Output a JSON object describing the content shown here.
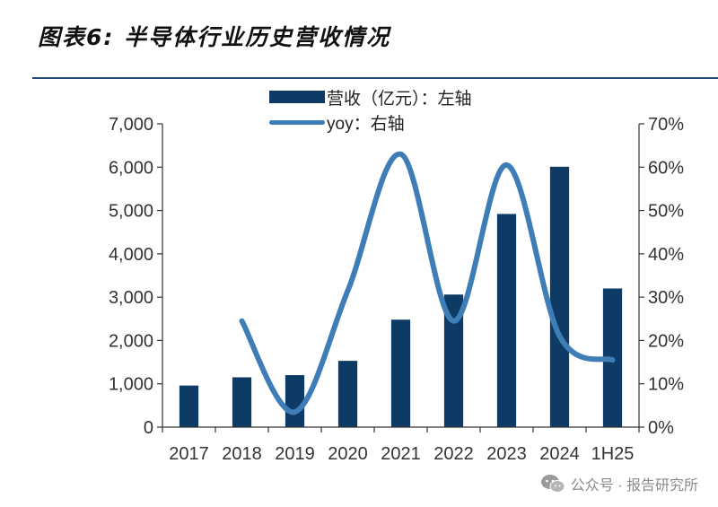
{
  "figure": {
    "title": "图表6: 半导体行业历史营收情况",
    "watermark": "公众号 · 报告研究所",
    "watermark_icon": "wechat-icon"
  },
  "colors": {
    "bar": "#0d3b66",
    "line": "#3f7db6",
    "rule": "#24496f",
    "axis": "#333333",
    "text": "#333333"
  },
  "chart_data": {
    "type": "bar",
    "categories": [
      "2017",
      "2018",
      "2019",
      "2020",
      "2021",
      "2022",
      "2023",
      "2024",
      "1H25"
    ],
    "series": [
      {
        "name": "营收（亿元）：左轴",
        "type": "bar",
        "axis": "left",
        "values": [
          960,
          1150,
          1200,
          1530,
          2480,
          3060,
          4920,
          6010,
          3200
        ]
      },
      {
        "name": "yoy：右轴",
        "type": "line",
        "axis": "right",
        "smooth": true,
        "values": [
          null,
          24.5,
          3.5,
          31.5,
          63,
          24.5,
          60.5,
          21,
          15.5
        ]
      }
    ],
    "yleft": {
      "lim": [
        0,
        7000
      ],
      "ticks": [
        0,
        1000,
        2000,
        3000,
        4000,
        5000,
        6000,
        7000
      ],
      "tick_labels": [
        "0",
        "1,000",
        "2,000",
        "3,000",
        "4,000",
        "5,000",
        "6,000",
        "7,000"
      ]
    },
    "yright": {
      "lim": [
        0,
        70
      ],
      "ticks": [
        0,
        10,
        20,
        30,
        40,
        50,
        60,
        70
      ],
      "tick_labels": [
        "0%",
        "10%",
        "20%",
        "30%",
        "40%",
        "50%",
        "60%",
        "70%"
      ]
    },
    "legend_position": "top-center",
    "grid": false
  }
}
